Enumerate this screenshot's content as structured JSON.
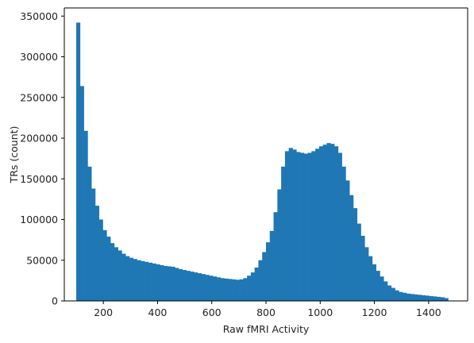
{
  "chart_data": {
    "type": "bar",
    "subtype": "histogram",
    "title": "",
    "xlabel": "Raw fMRI Activity",
    "ylabel": "TRs (count)",
    "xlim": [
      56,
      1544
    ],
    "ylim": [
      0,
      360000
    ],
    "xticks": [
      200,
      400,
      600,
      800,
      1000,
      1200,
      1400
    ],
    "yticks": [
      0,
      50000,
      100000,
      150000,
      200000,
      250000,
      300000,
      350000
    ],
    "xtick_labels": [
      "200",
      "400",
      "600",
      "800",
      "1000",
      "1200",
      "1400"
    ],
    "ytick_labels": [
      "0",
      "50000",
      "100000",
      "150000",
      "200000",
      "250000",
      "300000",
      "350000"
    ],
    "grid": false,
    "bar_color": "#1f77b4",
    "bin_start": 100,
    "bin_width": 14,
    "values": [
      342000,
      264000,
      209000,
      165000,
      138000,
      117000,
      100000,
      87000,
      79000,
      71000,
      66000,
      62000,
      58000,
      55000,
      53000,
      51500,
      50000,
      49000,
      48000,
      47000,
      46000,
      45000,
      44000,
      43000,
      42500,
      42000,
      40500,
      39000,
      38000,
      37000,
      36000,
      35000,
      34000,
      33000,
      32000,
      31000,
      30000,
      29000,
      28000,
      27500,
      27000,
      26500,
      26000,
      26500,
      28000,
      31000,
      35000,
      41000,
      50000,
      60000,
      72000,
      86000,
      109000,
      137000,
      165000,
      184000,
      188000,
      186000,
      183000,
      182000,
      181000,
      182000,
      184000,
      187000,
      190000,
      192000,
      194000,
      193000,
      190000,
      182000,
      165000,
      148000,
      130000,
      114000,
      95000,
      80000,
      66000,
      55000,
      45000,
      37000,
      30000,
      24000,
      19000,
      16000,
      13000,
      11000,
      10000,
      9000,
      8500,
      8000,
      7500,
      7000,
      6500,
      6000,
      5500,
      5000,
      4500,
      3500
    ]
  }
}
